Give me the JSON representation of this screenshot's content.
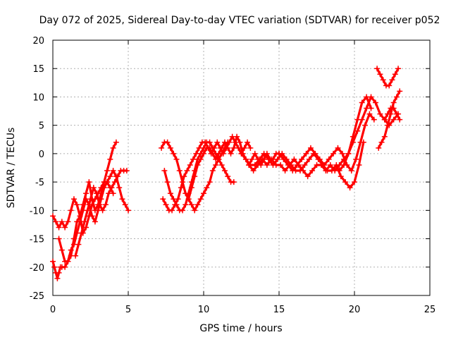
{
  "chart_data": {
    "type": "scatter",
    "title": "Day 072 of 2025, Sidereal Day-to-day VTEC variation (SDTVAR) for receiver p052",
    "xlabel": "GPS time / hours",
    "ylabel": "SDTVAR / TECUs",
    "xlim": [
      0,
      25
    ],
    "ylim": [
      -25,
      20
    ],
    "x_ticks": [
      0,
      5,
      10,
      15,
      20,
      25
    ],
    "y_ticks": [
      -25,
      -20,
      -15,
      -10,
      -5,
      0,
      5,
      10,
      15,
      20
    ],
    "grid": true,
    "legend": "none",
    "color": "#ff0000",
    "marker": "plus",
    "series": [
      {
        "x": [
          0.0,
          0.1,
          0.2,
          0.3,
          0.4,
          0.5
        ],
        "y": [
          -19,
          -20,
          -21,
          -22,
          -21,
          -20
        ]
      },
      {
        "x": [
          0.0,
          0.2,
          0.4,
          0.6,
          0.8,
          1.0,
          1.2,
          1.4,
          1.6,
          1.8,
          2.0,
          2.2,
          2.4,
          2.6,
          2.8,
          3.0,
          3.2,
          3.4,
          3.6,
          3.8,
          4.0
        ],
        "y": [
          -11,
          -12,
          -13,
          -12,
          -13,
          -12,
          -10,
          -8,
          -9,
          -11,
          -14,
          -13,
          -11,
          -9,
          -8,
          -7,
          -6,
          -5,
          -5,
          -6,
          -7
        ]
      },
      {
        "x": [
          0.4,
          0.6,
          0.8,
          1.0,
          1.2,
          1.4,
          1.6,
          1.8,
          2.0,
          2.2,
          2.4,
          2.6,
          2.8,
          3.0,
          3.2,
          3.4,
          3.6,
          3.8,
          4.0,
          4.2
        ],
        "y": [
          -15,
          -17,
          -19,
          -19,
          -18,
          -15,
          -12,
          -11,
          -9,
          -7,
          -5,
          -8,
          -10,
          -9,
          -7,
          -5,
          -3,
          -1,
          1,
          2
        ]
      },
      {
        "x": [
          0.6,
          0.8,
          1.0,
          1.2,
          1.4,
          1.6,
          1.8,
          2.0,
          2.2,
          2.4,
          2.6,
          2.8,
          3.0,
          3.2,
          3.4,
          3.6,
          3.8,
          4.0,
          4.2,
          4.4,
          4.6,
          4.8,
          5.0
        ],
        "y": [
          -20,
          -20,
          -19,
          -17,
          -16,
          -14,
          -12,
          -10,
          -8,
          -9,
          -11,
          -12,
          -10,
          -8,
          -6,
          -5,
          -4,
          -3,
          -4,
          -6,
          -8,
          -9,
          -10
        ]
      },
      {
        "x": [
          1.5,
          1.7,
          1.9,
          2.1,
          2.3,
          2.5,
          2.7,
          2.9,
          3.1,
          3.3,
          3.5,
          3.7,
          3.9,
          4.1,
          4.3,
          4.5,
          4.7,
          4.9
        ],
        "y": [
          -18,
          -16,
          -14,
          -12,
          -10,
          -8,
          -6,
          -7,
          -9,
          -10,
          -9,
          -7,
          -6,
          -5,
          -4,
          -3,
          -3,
          -3
        ]
      },
      {
        "x": [
          7.3,
          7.5,
          7.7,
          7.9,
          8.1,
          8.3,
          8.5,
          8.7,
          8.9,
          9.1,
          9.3,
          9.5,
          9.7,
          9.9,
          10.1,
          10.3,
          10.5,
          10.7,
          10.9,
          11.1,
          11.3,
          11.5,
          11.7,
          11.9,
          12.1,
          12.3,
          12.5,
          12.7,
          12.9,
          13.1
        ],
        "y": [
          -8,
          -9,
          -10,
          -10,
          -9,
          -8,
          -6,
          -4,
          -3,
          -2,
          -1,
          0,
          1,
          2,
          2,
          1,
          0,
          1,
          2,
          1,
          0,
          1,
          2,
          3,
          2,
          1,
          0,
          1,
          2,
          1
        ]
      },
      {
        "x": [
          7.2,
          7.4,
          7.6,
          7.8,
          8.0,
          8.2,
          8.4,
          8.6,
          8.8,
          9.0,
          9.2,
          9.4,
          9.6,
          9.8,
          10.0,
          10.2,
          10.4,
          10.6,
          10.8,
          11.0,
          11.2,
          11.4,
          11.6
        ],
        "y": [
          1,
          2,
          2,
          1,
          0,
          -1,
          -3,
          -5,
          -7,
          -8,
          -9,
          -10,
          -9,
          -8,
          -7,
          -6,
          -5,
          -3,
          -2,
          -1,
          0,
          1,
          2
        ]
      },
      {
        "x": [
          7.4,
          7.6,
          7.8,
          8.0,
          8.2,
          8.4,
          8.6,
          8.8,
          9.0,
          9.2,
          9.4,
          9.6,
          9.8,
          10.0,
          10.2,
          10.4,
          10.6,
          10.8,
          11.0,
          11.2,
          11.4,
          11.6,
          11.8,
          12.0
        ],
        "y": [
          -3,
          -5,
          -7,
          -8,
          -9,
          -10,
          -10,
          -9,
          -7,
          -5,
          -3,
          -1,
          0,
          1,
          2,
          2,
          1,
          0,
          -1,
          -2,
          -3,
          -4,
          -5,
          -5
        ]
      },
      {
        "x": [
          9.0,
          9.2,
          9.4,
          9.6,
          9.8,
          10.0,
          10.2,
          10.4,
          10.6,
          10.8,
          11.0,
          11.2,
          11.4,
          11.6,
          11.8,
          12.0,
          12.2,
          12.4,
          12.6,
          12.8,
          13.0,
          13.2,
          13.4,
          13.6,
          13.8,
          14.0,
          14.2,
          14.4,
          14.6,
          14.8,
          15.0
        ],
        "y": [
          -8,
          -6,
          -4,
          -2,
          -1,
          0,
          1,
          1,
          0,
          -1,
          0,
          1,
          2,
          1,
          0,
          1,
          3,
          2,
          0,
          -1,
          -2,
          -1,
          0,
          -1,
          -2,
          -1,
          0,
          -1,
          -1,
          0,
          0
        ]
      },
      {
        "x": [
          12.5,
          12.8,
          13.1,
          13.4,
          13.7,
          14.0,
          14.3,
          14.6,
          14.9,
          15.2,
          15.5,
          15.8,
          16.1,
          16.4,
          16.7,
          17.0,
          17.3,
          17.6,
          17.9,
          18.2,
          18.5,
          18.8,
          19.1,
          19.4,
          19.7,
          20.0,
          20.3,
          20.6
        ],
        "y": [
          0,
          -1,
          -2,
          -2,
          -1,
          0,
          -1,
          -2,
          -1,
          0,
          -1,
          -2,
          -3,
          -3,
          -2,
          -1,
          0,
          -1,
          -2,
          -3,
          -3,
          -2,
          -4,
          -5,
          -6,
          -5,
          -2,
          2
        ]
      },
      {
        "x": [
          13.0,
          13.3,
          13.6,
          13.9,
          14.2,
          14.5,
          14.8,
          15.1,
          15.4,
          15.7,
          16.0,
          16.3,
          16.6,
          16.9,
          17.2,
          17.5,
          17.8,
          18.1,
          18.4,
          18.7,
          19.0,
          19.3,
          19.6,
          19.9,
          20.2,
          20.5,
          20.8,
          21.1
        ],
        "y": [
          -2,
          -3,
          -2,
          -1,
          -2,
          -1,
          -2,
          -2,
          -3,
          -2,
          -1,
          -2,
          -3,
          -4,
          -3,
          -2,
          -2,
          -3,
          -2,
          -3,
          -2,
          -1,
          0,
          3,
          6,
          9,
          10,
          8
        ]
      },
      {
        "x": [
          15.0,
          15.3,
          15.6,
          15.9,
          16.2,
          16.5,
          16.8,
          17.1,
          17.4,
          17.7,
          18.0,
          18.3,
          18.6,
          18.9,
          19.2,
          19.5,
          19.8,
          20.1,
          20.4,
          20.7,
          21.0,
          21.3
        ],
        "y": [
          0,
          -1,
          -2,
          -3,
          -2,
          -1,
          0,
          1,
          0,
          -1,
          -2,
          -1,
          0,
          1,
          0,
          -2,
          -3,
          -1,
          2,
          5,
          7,
          6
        ]
      },
      {
        "x": [
          19.0,
          19.3,
          19.6,
          19.9,
          20.2,
          20.5,
          20.8,
          21.1,
          21.4,
          21.7,
          22.0,
          22.3,
          22.6,
          22.9
        ],
        "y": [
          -3,
          -2,
          0,
          2,
          4,
          6,
          8,
          10,
          9,
          7,
          6,
          5,
          6,
          7
        ]
      },
      {
        "x": [
          21.5,
          21.7,
          21.9,
          22.1,
          22.3,
          22.5,
          22.7,
          22.9
        ],
        "y": [
          15,
          14,
          13,
          12,
          12,
          13,
          14,
          15
        ]
      },
      {
        "x": [
          21.6,
          21.8,
          22.0,
          22.2,
          22.4,
          22.6,
          22.8,
          23.0
        ],
        "y": [
          1,
          2,
          3,
          5,
          7,
          9,
          10,
          11
        ]
      },
      {
        "x": [
          22.0,
          22.2,
          22.4,
          22.6,
          22.8,
          23.0
        ],
        "y": [
          6,
          7,
          8,
          8,
          7,
          6
        ]
      }
    ]
  }
}
